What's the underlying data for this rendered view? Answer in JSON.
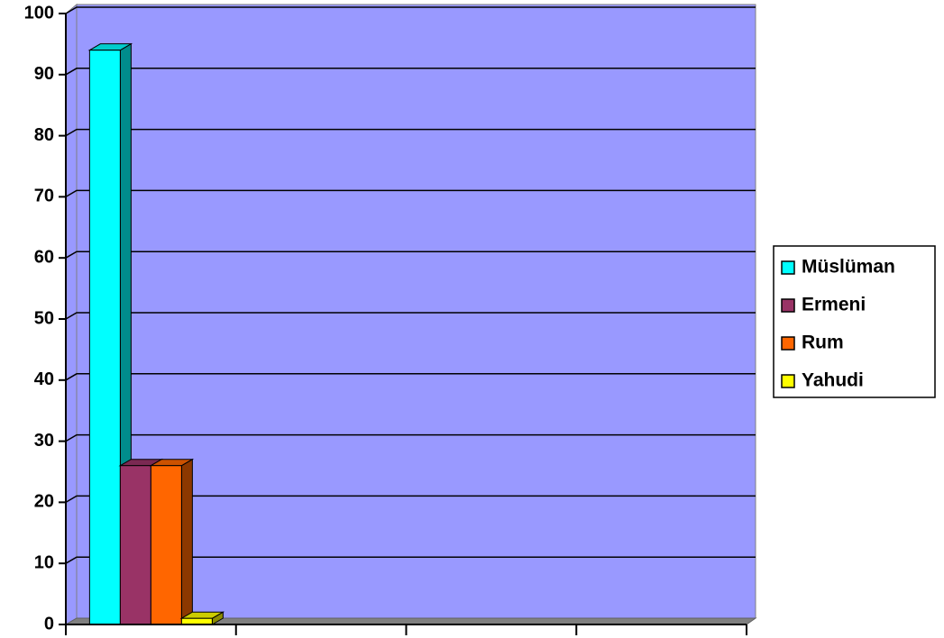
{
  "chart_data": {
    "type": "bar3d",
    "categories": [
      null,
      null,
      null,
      null
    ],
    "series": [
      {
        "name": "Müslüman",
        "color": "#00ffff",
        "values": [
          94,
          null,
          null,
          null
        ]
      },
      {
        "name": "Ermeni",
        "color": "#993366",
        "values": [
          26,
          null,
          null,
          null
        ]
      },
      {
        "name": "Rum",
        "color": "#ff6600",
        "values": [
          26,
          null,
          null,
          null
        ]
      },
      {
        "name": "Yahudi",
        "color": "#ffff00",
        "values": [
          1,
          null,
          null,
          null
        ]
      }
    ],
    "ylim": [
      0,
      100
    ],
    "yticks": [
      0,
      10,
      20,
      30,
      40,
      50,
      60,
      70,
      80,
      90,
      100
    ],
    "grid": true,
    "legend": "right"
  }
}
